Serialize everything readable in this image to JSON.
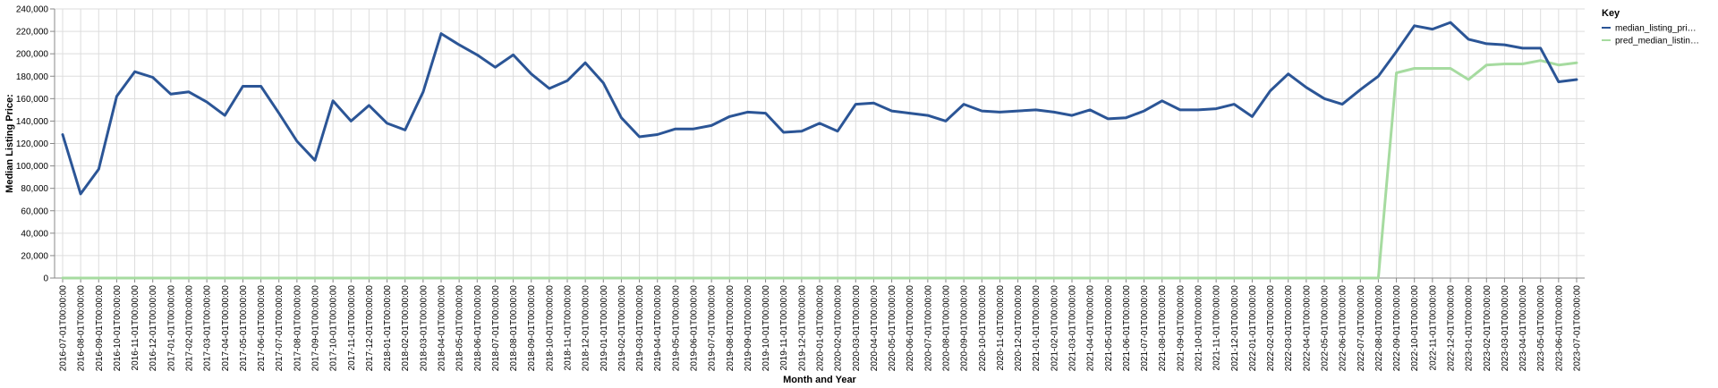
{
  "chart_data": {
    "type": "line",
    "xlabel": "Month and Year",
    "ylabel": "Median Listing Price:",
    "ylim": [
      0,
      240000
    ],
    "y_ticks": [
      "0",
      "20,000",
      "40,000",
      "60,000",
      "80,000",
      "100,000",
      "120,000",
      "140,000",
      "160,000",
      "180,000",
      "200,000",
      "220,000",
      "240,000"
    ],
    "grid": true,
    "legend_placement": "top-right",
    "legend_title": "Key",
    "x": [
      "2016-07-01T00:00:00",
      "2016-08-01T00:00:00",
      "2016-09-01T00:00:00",
      "2016-10-01T00:00:00",
      "2016-11-01T00:00:00",
      "2016-12-01T00:00:00",
      "2017-01-01T00:00:00",
      "2017-02-01T00:00:00",
      "2017-03-01T00:00:00",
      "2017-04-01T00:00:00",
      "2017-05-01T00:00:00",
      "2017-06-01T00:00:00",
      "2017-07-01T00:00:00",
      "2017-08-01T00:00:00",
      "2017-09-01T00:00:00",
      "2017-10-01T00:00:00",
      "2017-11-01T00:00:00",
      "2017-12-01T00:00:00",
      "2018-01-01T00:00:00",
      "2018-02-01T00:00:00",
      "2018-03-01T00:00:00",
      "2018-04-01T00:00:00",
      "2018-05-01T00:00:00",
      "2018-06-01T00:00:00",
      "2018-07-01T00:00:00",
      "2018-08-01T00:00:00",
      "2018-09-01T00:00:00",
      "2018-10-01T00:00:00",
      "2018-11-01T00:00:00",
      "2018-12-01T00:00:00",
      "2019-01-01T00:00:00",
      "2019-02-01T00:00:00",
      "2019-03-01T00:00:00",
      "2019-04-01T00:00:00",
      "2019-05-01T00:00:00",
      "2019-06-01T00:00:00",
      "2019-07-01T00:00:00",
      "2019-08-01T00:00:00",
      "2019-09-01T00:00:00",
      "2019-10-01T00:00:00",
      "2019-11-01T00:00:00",
      "2019-12-01T00:00:00",
      "2020-01-01T00:00:00",
      "2020-02-01T00:00:00",
      "2020-03-01T00:00:00",
      "2020-04-01T00:00:00",
      "2020-05-01T00:00:00",
      "2020-06-01T00:00:00",
      "2020-07-01T00:00:00",
      "2020-08-01T00:00:00",
      "2020-09-01T00:00:00",
      "2020-10-01T00:00:00",
      "2020-11-01T00:00:00",
      "2020-12-01T00:00:00",
      "2021-01-01T00:00:00",
      "2021-02-01T00:00:00",
      "2021-03-01T00:00:00",
      "2021-04-01T00:00:00",
      "2021-05-01T00:00:00",
      "2021-06-01T00:00:00",
      "2021-07-01T00:00:00",
      "2021-08-01T00:00:00",
      "2021-09-01T00:00:00",
      "2021-10-01T00:00:00",
      "2021-11-01T00:00:00",
      "2021-12-01T00:00:00",
      "2022-01-01T00:00:00",
      "2022-02-01T00:00:00",
      "2022-03-01T00:00:00",
      "2022-04-01T00:00:00",
      "2022-05-01T00:00:00",
      "2022-06-01T00:00:00",
      "2022-07-01T00:00:00",
      "2022-08-01T00:00:00",
      "2022-09-01T00:00:00",
      "2022-10-01T00:00:00",
      "2022-11-01T00:00:00",
      "2022-12-01T00:00:00",
      "2023-01-01T00:00:00",
      "2023-02-01T00:00:00",
      "2023-03-01T00:00:00",
      "2023-04-01T00:00:00",
      "2023-05-01T00:00:00",
      "2023-06-01T00:00:00",
      "2023-07-01T00:00:00"
    ],
    "series": [
      {
        "name": "median_listing_pri…",
        "color": "#2b5596",
        "values": [
          128000,
          75000,
          97000,
          162000,
          184000,
          179000,
          164000,
          166000,
          157000,
          145000,
          171000,
          171000,
          147000,
          122000,
          105000,
          158000,
          140000,
          154000,
          138000,
          132000,
          166000,
          218000,
          208000,
          199000,
          188000,
          199000,
          182000,
          169000,
          176000,
          192000,
          174000,
          143000,
          126000,
          128000,
          133000,
          133000,
          136000,
          144000,
          148000,
          147000,
          130000,
          131000,
          138000,
          131000,
          155000,
          156000,
          149000,
          147000,
          145000,
          140000,
          155000,
          149000,
          148000,
          149000,
          150000,
          148000,
          145000,
          150000,
          142000,
          143000,
          149000,
          158000,
          150000,
          150000,
          151000,
          155000,
          144000,
          167000,
          182000,
          170000,
          160000,
          155000,
          168000,
          180000,
          202000,
          225000,
          222000,
          228000,
          213000,
          209000,
          208000,
          205000,
          205000,
          175000,
          177000
        ]
      },
      {
        "name": "pred_median_listin…",
        "color": "#a6dba0",
        "values": [
          0,
          0,
          0,
          0,
          0,
          0,
          0,
          0,
          0,
          0,
          0,
          0,
          0,
          0,
          0,
          0,
          0,
          0,
          0,
          0,
          0,
          0,
          0,
          0,
          0,
          0,
          0,
          0,
          0,
          0,
          0,
          0,
          0,
          0,
          0,
          0,
          0,
          0,
          0,
          0,
          0,
          0,
          0,
          0,
          0,
          0,
          0,
          0,
          0,
          0,
          0,
          0,
          0,
          0,
          0,
          0,
          0,
          0,
          0,
          0,
          0,
          0,
          0,
          0,
          0,
          0,
          0,
          0,
          0,
          0,
          0,
          0,
          0,
          0,
          183000,
          187000,
          187000,
          187000,
          177000,
          190000,
          191000,
          191000,
          194000,
          190000,
          192000
        ]
      }
    ]
  }
}
